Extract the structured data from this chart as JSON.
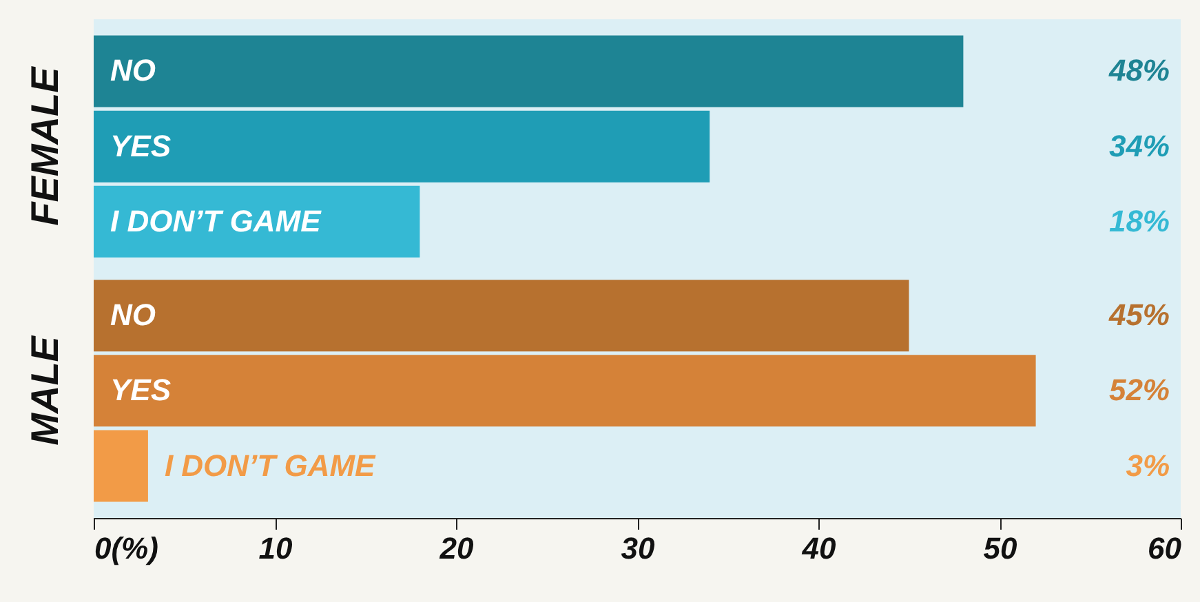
{
  "chart_data": {
    "type": "bar",
    "orientation": "horizontal",
    "categories": [
      "NO",
      "YES",
      "I DON’T GAME",
      "NO",
      "YES",
      "I DON’T GAME"
    ],
    "values": [
      48,
      34,
      18,
      45,
      52,
      3
    ],
    "value_labels": [
      "48%",
      "34%",
      "18%",
      "45%",
      "52%",
      "3%"
    ],
    "colors": [
      "#1e8494",
      "#1f9db5",
      "#35b9d4",
      "#b7712f",
      "#d58238",
      "#f29b47"
    ],
    "xlim": [
      0,
      60
    ],
    "xticks": [
      {
        "value": 0,
        "label": "0(%)"
      },
      10,
      20,
      30,
      40,
      50,
      60
    ],
    "bands": [
      {
        "axis": "x",
        "from": 0,
        "to": 60,
        "color": "#dceff5"
      }
    ],
    "annotations": [
      "FEMALE",
      "MALE"
    ],
    "grid": false
  }
}
